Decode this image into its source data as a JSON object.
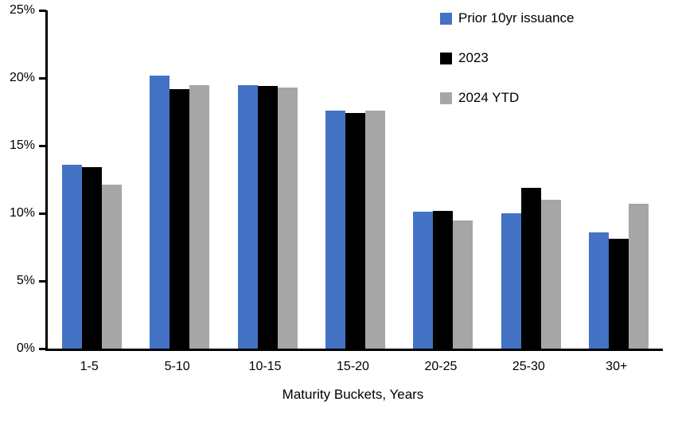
{
  "chart_data": {
    "type": "bar",
    "title": "",
    "xlabel": "Maturity Buckets, Years",
    "ylabel": "",
    "ylim": [
      0,
      25
    ],
    "ytick_step": 5,
    "ytick_suffix": "%",
    "grid": false,
    "legend_position": "top-right-vertical",
    "categories": [
      "1-5",
      "5-10",
      "10-15",
      "15-20",
      "20-25",
      "25-30",
      "30+"
    ],
    "series": [
      {
        "name": "Prior 10yr issuance",
        "color": "#4472C4",
        "values": [
          13.6,
          20.2,
          19.5,
          17.6,
          10.1,
          10.0,
          8.6
        ]
      },
      {
        "name": "2023",
        "color": "#000000",
        "values": [
          13.4,
          19.2,
          19.4,
          17.4,
          10.2,
          11.9,
          8.1
        ]
      },
      {
        "name": "2024 YTD",
        "color": "#A6A6A6",
        "values": [
          12.1,
          19.5,
          19.3,
          17.6,
          9.5,
          11.0,
          10.7
        ]
      }
    ],
    "axis_color": "#000000",
    "text_color": "#000000"
  }
}
